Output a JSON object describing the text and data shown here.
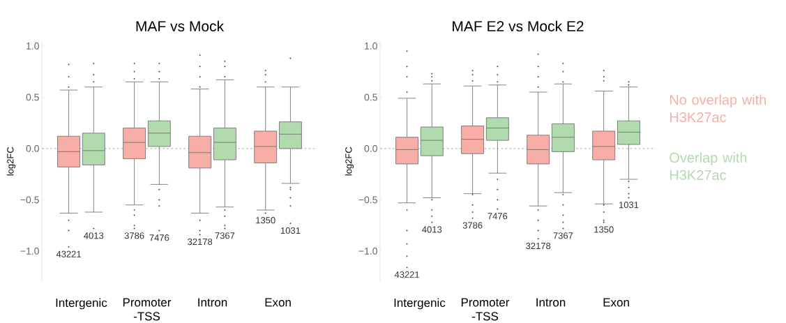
{
  "chart_data": [
    {
      "type": "box",
      "title": "MAF vs Mock",
      "ylabel": "log2FC",
      "categories": [
        "Intergenic",
        "Promoter -TSS",
        "Intron",
        "Exon"
      ],
      "ylim": [
        -1.3,
        1.05
      ],
      "yticks": [
        {
          "value": -1,
          "label": "−1.0"
        },
        {
          "value": -0.5,
          "label": "−0.5"
        },
        {
          "value": 0,
          "label": "0.0"
        },
        {
          "value": 0.5,
          "label": "0.5"
        },
        {
          "value": 1,
          "label": "1.0"
        }
      ],
      "ref_lines": [
        {
          "axis": "y",
          "value": 0,
          "color": "#999999",
          "line_style": "dashed"
        }
      ],
      "series": [
        {
          "color": "#f6aea6",
          "value_labels": [
            "43221",
            "3786",
            "32178",
            "1350"
          ],
          "boxes": [
            {
              "low": -0.63,
              "q1": -0.18,
              "median": -0.03,
              "q3": 0.12,
              "high": 0.57,
              "outliers": [
                0.6,
                0.7,
                0.82,
                -0.7,
                -0.8,
                -0.96
              ]
            },
            {
              "low": -0.55,
              "q1": -0.1,
              "median": 0.06,
              "q3": 0.2,
              "high": 0.65,
              "outliers": [
                0.68,
                0.75,
                0.83,
                -0.6,
                -0.65,
                -0.75,
                -0.78
              ]
            },
            {
              "low": -0.63,
              "q1": -0.19,
              "median": -0.04,
              "q3": 0.12,
              "high": 0.58,
              "outliers": [
                0.6,
                0.7,
                0.8,
                0.91,
                -0.7,
                -0.8,
                -0.84
              ]
            },
            {
              "low": -0.6,
              "q1": -0.14,
              "median": 0.02,
              "q3": 0.17,
              "high": 0.6,
              "outliers": [
                0.65,
                0.72,
                0.76,
                -0.63
              ]
            }
          ]
        },
        {
          "color": "#b1dbae",
          "value_labels": [
            "4013",
            "7476",
            "7367",
            "1031"
          ],
          "boxes": [
            {
              "low": -0.62,
              "q1": -0.16,
              "median": -0.02,
              "q3": 0.15,
              "high": 0.6,
              "outliers": [
                0.65,
                0.72,
                0.83,
                -0.78
              ]
            },
            {
              "low": -0.35,
              "q1": 0.02,
              "median": 0.15,
              "q3": 0.27,
              "high": 0.65,
              "outliers": [
                0.68,
                0.75,
                0.83,
                -0.4,
                -0.5,
                -0.56,
                -0.8
              ]
            },
            {
              "low": -0.57,
              "q1": -0.11,
              "median": 0.06,
              "q3": 0.2,
              "high": 0.67,
              "outliers": [
                0.7,
                0.8,
                0.85,
                -0.6,
                -0.66,
                -0.75,
                -0.78
              ]
            },
            {
              "low": -0.34,
              "q1": 0.0,
              "median": 0.14,
              "q3": 0.26,
              "high": 0.6,
              "outliers": [
                0.88,
                -0.38,
                -0.4,
                -0.48,
                -0.56,
                -0.73
              ]
            }
          ]
        }
      ]
    },
    {
      "type": "box",
      "title": "MAF E2 vs Mock E2",
      "ylabel": "log2FC",
      "categories": [
        "Intergenic",
        "Promoter -TSS",
        "Intron",
        "Exon"
      ],
      "ylim": [
        -1.3,
        1.05
      ],
      "yticks": [
        {
          "value": -1,
          "label": "−1.0"
        },
        {
          "value": -0.5,
          "label": "−0.5"
        },
        {
          "value": 0,
          "label": "0.0"
        },
        {
          "value": 0.5,
          "label": "0.5"
        },
        {
          "value": 1,
          "label": "1.0"
        }
      ],
      "ref_lines": [
        {
          "axis": "y",
          "value": 0,
          "color": "#999999",
          "line_style": "dashed"
        }
      ],
      "series": [
        {
          "name": "No overlap with H3K27ac",
          "color": "#f6aea6",
          "value_labels": [
            "43221",
            "3786",
            "32178",
            "1350"
          ],
          "boxes": [
            {
              "low": -0.53,
              "q1": -0.15,
              "median": -0.01,
              "q3": 0.11,
              "high": 0.49,
              "outliers": [
                0.55,
                0.7,
                0.8,
                0.95,
                -0.6,
                -0.8,
                -0.93,
                -1.05,
                -1.16
              ]
            },
            {
              "low": -0.44,
              "q1": -0.05,
              "median": 0.09,
              "q3": 0.22,
              "high": 0.61,
              "outliers": [
                0.66,
                0.72,
                0.76,
                -0.45,
                -0.55,
                -0.62,
                -0.68
              ]
            },
            {
              "low": -0.56,
              "q1": -0.15,
              "median": -0.01,
              "q3": 0.13,
              "high": 0.55,
              "outliers": [
                0.6,
                0.7,
                0.8,
                0.92,
                -0.6,
                -0.7,
                -0.8,
                -0.88
              ]
            },
            {
              "low": -0.54,
              "q1": -0.11,
              "median": 0.02,
              "q3": 0.17,
              "high": 0.56,
              "outliers": [
                0.66,
                0.7,
                0.76,
                -0.55,
                -0.62,
                -0.7,
                -0.72
              ]
            }
          ]
        },
        {
          "name": "Overlap with H3K27ac",
          "color": "#b1dbae",
          "value_labels": [
            "4013",
            "7476",
            "7367",
            "1031"
          ],
          "boxes": [
            {
              "low": -0.48,
              "q1": -0.07,
              "median": 0.08,
              "q3": 0.21,
              "high": 0.63,
              "outliers": [
                0.66,
                0.7,
                0.73,
                -0.5,
                -0.6,
                -0.66,
                -0.72
              ]
            },
            {
              "low": -0.24,
              "q1": 0.08,
              "median": 0.2,
              "q3": 0.3,
              "high": 0.62,
              "outliers": [
                0.65,
                0.72,
                0.8,
                -0.3,
                -0.4,
                -0.5,
                -0.59
              ]
            },
            {
              "low": -0.43,
              "q1": -0.03,
              "median": 0.11,
              "q3": 0.24,
              "high": 0.63,
              "outliers": [
                0.65,
                0.75,
                0.83,
                -0.45,
                -0.55,
                -0.65,
                -0.72,
                -0.78
              ]
            },
            {
              "low": -0.3,
              "q1": 0.04,
              "median": 0.16,
              "q3": 0.27,
              "high": 0.6,
              "outliers": [
                0.62,
                0.65,
                -0.32,
                -0.38,
                -0.44,
                -0.48
              ]
            }
          ]
        }
      ]
    }
  ]
}
